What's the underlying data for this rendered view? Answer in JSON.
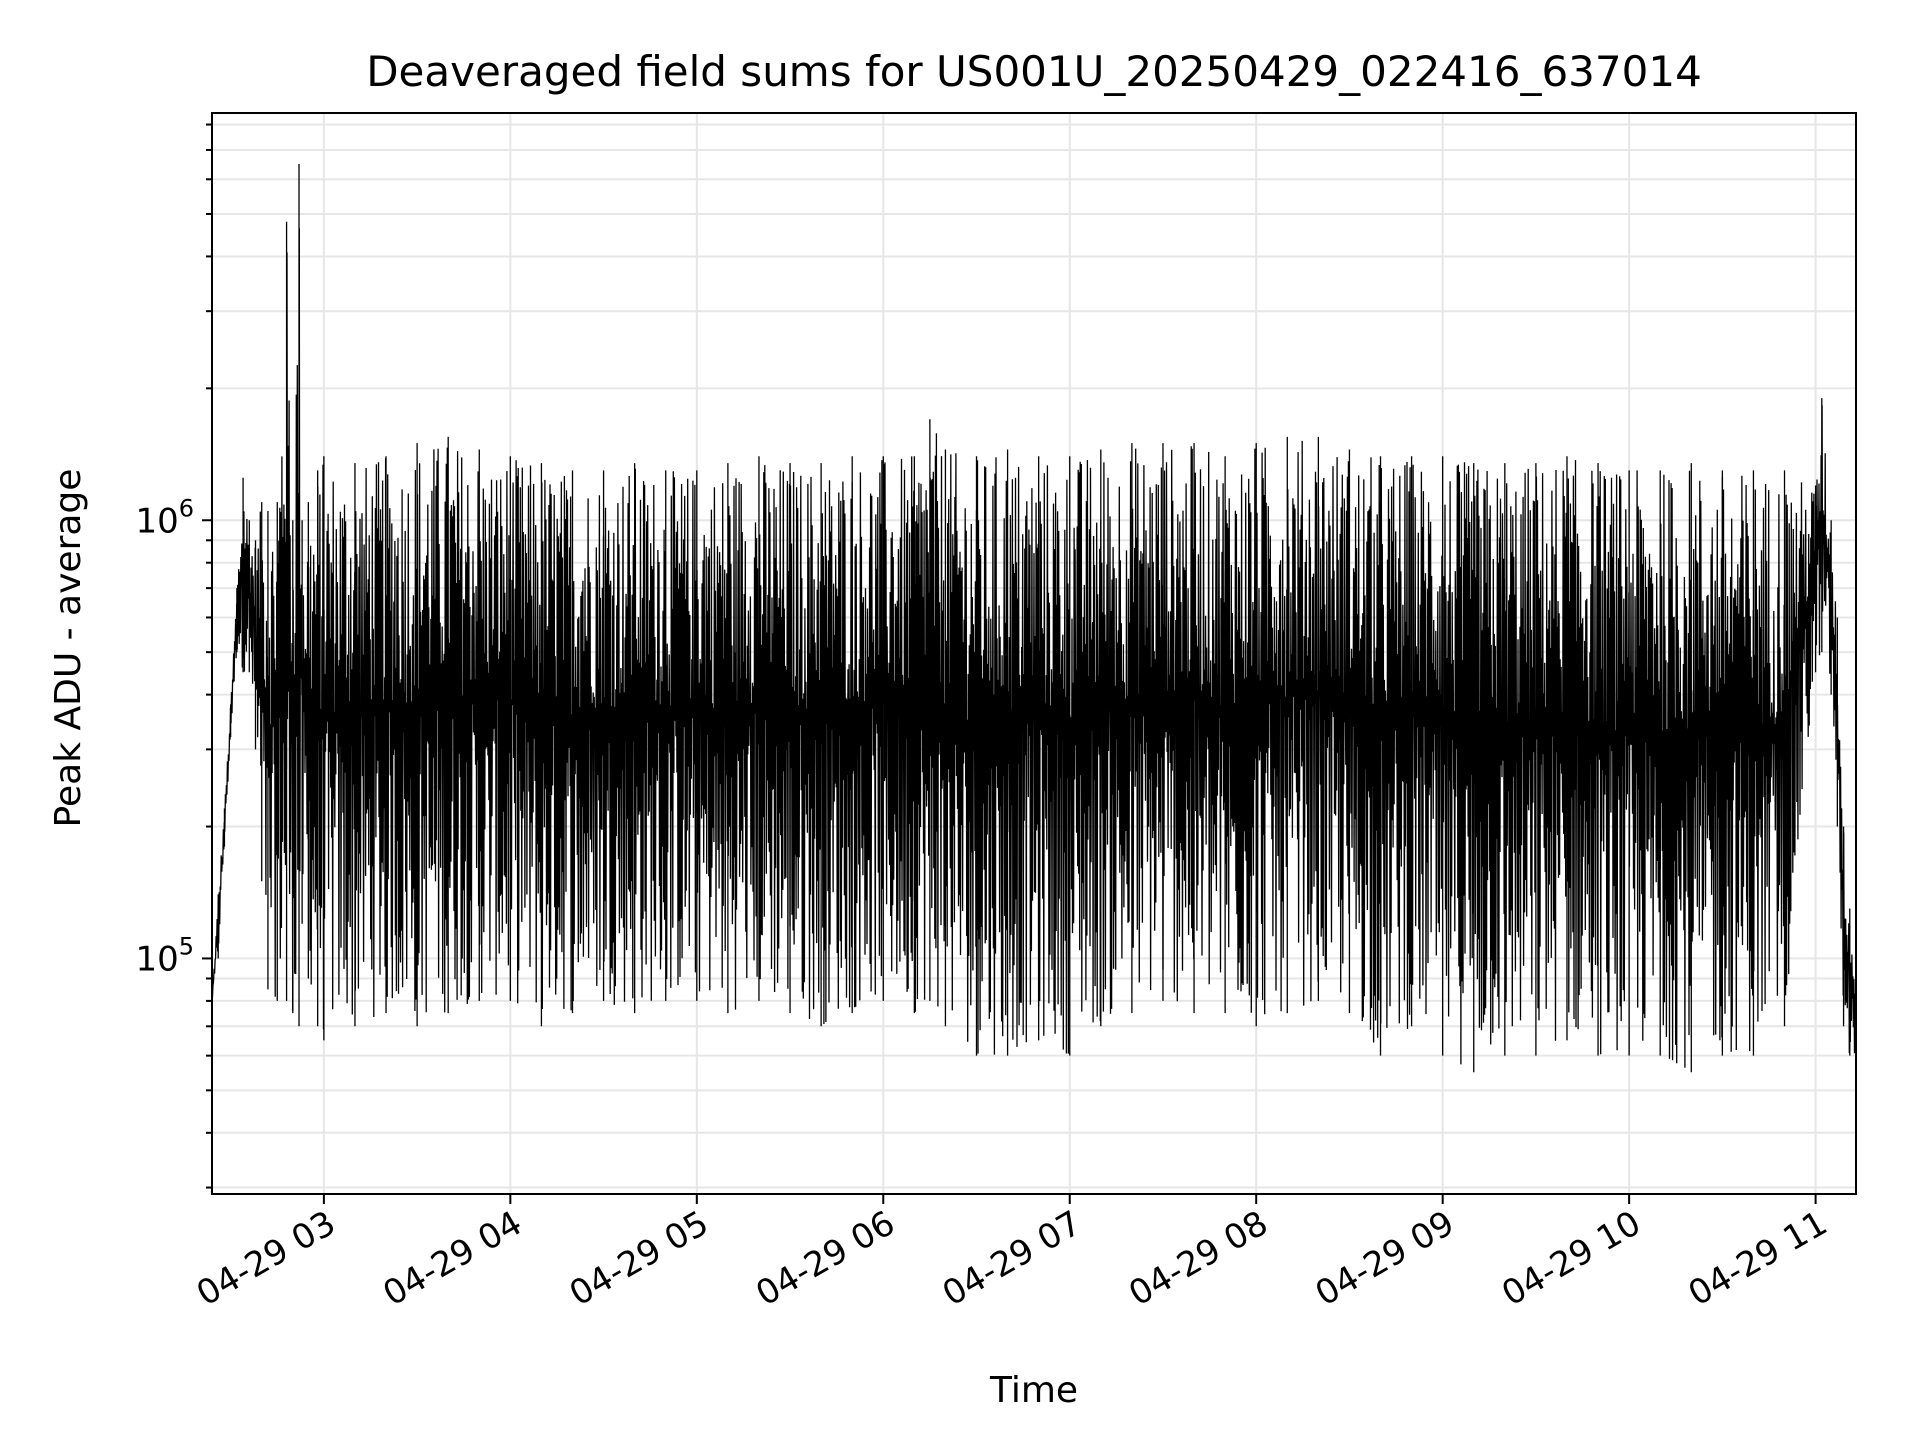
{
  "chart_data": {
    "type": "line",
    "title": "Deaveraged field sums for US001U_20250429_022416_637014",
    "xlabel": "Time",
    "ylabel": "Peak ADU - average",
    "yscale": "log",
    "ylim": [
      29000,
      8500000
    ],
    "xlim": [
      "04-29 02:24",
      "04-29 11:13"
    ],
    "grid": true,
    "x_ticks": [
      {
        "value": "04-29 03:00",
        "label": "04-29 03"
      },
      {
        "value": "04-29 04:00",
        "label": "04-29 04"
      },
      {
        "value": "04-29 05:00",
        "label": "04-29 05"
      },
      {
        "value": "04-29 06:00",
        "label": "04-29 06"
      },
      {
        "value": "04-29 07:00",
        "label": "04-29 07"
      },
      {
        "value": "04-29 08:00",
        "label": "04-29 08"
      },
      {
        "value": "04-29 09:00",
        "label": "04-29 09"
      },
      {
        "value": "04-29 10:00",
        "label": "04-29 10"
      },
      {
        "value": "04-29 11:00",
        "label": "04-29 11"
      }
    ],
    "y_ticks": [
      {
        "value": 100000,
        "base": "10",
        "exponent": "5"
      },
      {
        "value": 1000000,
        "base": "10",
        "exponent": "6"
      }
    ],
    "line_color": "#000000",
    "grid_color": "#e6e6e6",
    "series": [
      {
        "x": [
          "04-29 02:24",
          "04-29 02:26",
          "04-29 02:28",
          "04-29 02:30",
          "04-29 02:32",
          "04-29 02:34",
          "04-29 02:36",
          "04-29 02:38",
          "04-29 02:40",
          "04-29 02:42",
          "04-29 02:45",
          "04-29 02:48",
          "04-29 02:50",
          "04-29 02:52",
          "04-29 02:53",
          "04-29 02:55",
          "04-29 02:58",
          "04-29 03:00",
          "04-29 03:10",
          "04-29 03:20",
          "04-29 03:30",
          "04-29 03:40",
          "04-29 03:50",
          "04-29 04:00",
          "04-29 04:10",
          "04-29 04:20",
          "04-29 04:30",
          "04-29 04:40",
          "04-29 04:50",
          "04-29 05:00",
          "04-29 05:10",
          "04-29 05:20",
          "04-29 05:30",
          "04-29 05:40",
          "04-29 05:50",
          "04-29 06:00",
          "04-29 06:10",
          "04-29 06:15",
          "04-29 06:20",
          "04-29 06:30",
          "04-29 06:40",
          "04-29 06:50",
          "04-29 07:00",
          "04-29 07:10",
          "04-29 07:20",
          "04-29 07:30",
          "04-29 07:40",
          "04-29 07:50",
          "04-29 08:00",
          "04-29 08:10",
          "04-29 08:20",
          "04-29 08:30",
          "04-29 08:40",
          "04-29 08:50",
          "04-29 09:00",
          "04-29 09:10",
          "04-29 09:20",
          "04-29 09:30",
          "04-29 09:40",
          "04-29 09:50",
          "04-29 10:00",
          "04-29 10:10",
          "04-29 10:20",
          "04-29 10:30",
          "04-29 10:40",
          "04-29 10:50",
          "04-29 11:00",
          "04-29 11:02",
          "04-29 11:05",
          "04-29 11:07",
          "04-29 11:09",
          "04-29 11:11",
          "04-29 11:13"
        ],
        "upper": [
          80000,
          140000,
          220000,
          380000,
          700000,
          1250000,
          1000000,
          900000,
          1100000,
          1050000,
          1100000,
          4800000,
          1000000,
          6500000,
          1000000,
          1100000,
          1300000,
          1400000,
          1350000,
          1400000,
          1500000,
          1550000,
          1450000,
          1400000,
          1350000,
          1300000,
          1300000,
          1350000,
          1300000,
          1300000,
          1350000,
          1400000,
          1350000,
          1350000,
          1400000,
          1400000,
          1400000,
          1700000,
          1450000,
          1400000,
          1450000,
          1400000,
          1400000,
          1450000,
          1500000,
          1500000,
          1500000,
          1400000,
          1500000,
          1550000,
          1550000,
          1450000,
          1400000,
          1400000,
          1400000,
          1350000,
          1350000,
          1350000,
          1400000,
          1350000,
          1300000,
          1300000,
          1350000,
          1300000,
          1300000,
          1300000,
          1200000,
          1900000,
          1000000,
          600000,
          200000,
          130000,
          90000
        ],
        "lower": [
          80000,
          100000,
          180000,
          320000,
          500000,
          450000,
          450000,
          300000,
          150000,
          85000,
          80000,
          80000,
          75000,
          70000,
          120000,
          90000,
          70000,
          65000,
          70000,
          75000,
          70000,
          75000,
          80000,
          80000,
          70000,
          75000,
          80000,
          75000,
          80000,
          80000,
          75000,
          80000,
          75000,
          70000,
          75000,
          80000,
          75000,
          80000,
          70000,
          60000,
          60000,
          65000,
          60000,
          70000,
          75000,
          80000,
          75000,
          75000,
          70000,
          75000,
          80000,
          75000,
          60000,
          70000,
          60000,
          55000,
          60000,
          60000,
          65000,
          60000,
          60000,
          60000,
          55000,
          60000,
          60000,
          70000,
          450000,
          500000,
          400000,
          200000,
          70000,
          60000,
          60000
        ]
      }
    ]
  }
}
